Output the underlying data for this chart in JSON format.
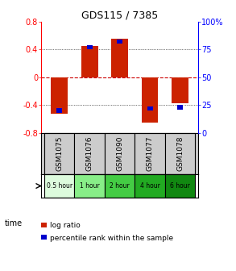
{
  "title": "GDS115 / 7385",
  "samples": [
    "GSM1075",
    "GSM1076",
    "GSM1090",
    "GSM1077",
    "GSM1078"
  ],
  "time_labels": [
    "0.5 hour",
    "1 hour",
    "2 hour",
    "4 hour",
    "6 hour"
  ],
  "time_colors": [
    "#ddfbdd",
    "#88ee88",
    "#44cc44",
    "#22aa22",
    "#118811"
  ],
  "log_ratios": [
    -0.52,
    0.45,
    0.55,
    -0.65,
    -0.38
  ],
  "percentile_ranks": [
    20,
    77,
    82,
    22,
    23
  ],
  "ylim_left": [
    -0.8,
    0.8
  ],
  "ylim_right": [
    0,
    100
  ],
  "yticks_left": [
    -0.8,
    -0.4,
    0,
    0.4,
    0.8
  ],
  "yticks_right": [
    0,
    25,
    50,
    75,
    100
  ],
  "bar_width": 0.55,
  "blue_bar_width": 0.18,
  "red_color": "#cc2200",
  "blue_color": "#0000cc",
  "dashed_zero_color": "#cc0000",
  "background_plot": "#ffffff",
  "background_fig": "#ffffff",
  "sample_bg": "#cccccc",
  "legend_items": [
    "log ratio",
    "percentile rank within the sample"
  ]
}
